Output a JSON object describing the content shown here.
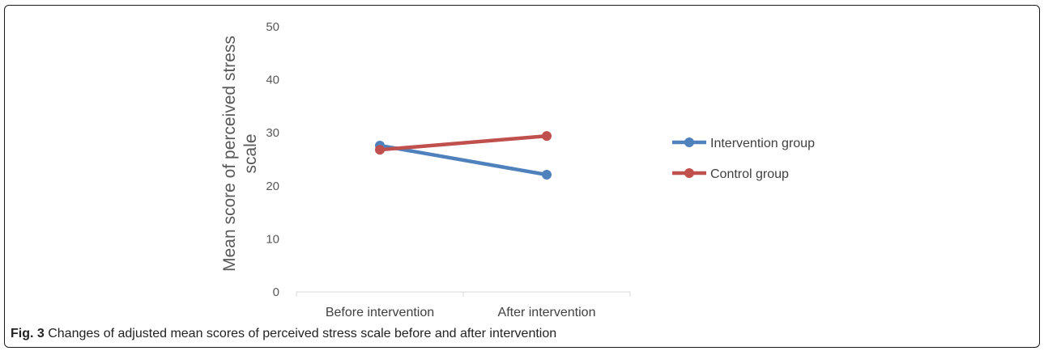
{
  "chart_data": {
    "type": "line",
    "categories": [
      "Before intervention",
      "After intervention"
    ],
    "series": [
      {
        "name": "Intervention group",
        "values": [
          27.6,
          22.1
        ],
        "color": "#4f81bd"
      },
      {
        "name": "Control group",
        "values": [
          26.8,
          29.4
        ],
        "color": "#c0504d"
      }
    ],
    "ylabel": "Mean score of perceived stress scale",
    "ylim": [
      0,
      50
    ],
    "yticks": [
      0,
      10,
      20,
      30,
      40,
      50
    ],
    "grid": false,
    "legend": "right"
  },
  "caption": {
    "label": "Fig. 3",
    "text": " Changes of adjusted mean scores of perceived stress scale before and after intervention"
  }
}
